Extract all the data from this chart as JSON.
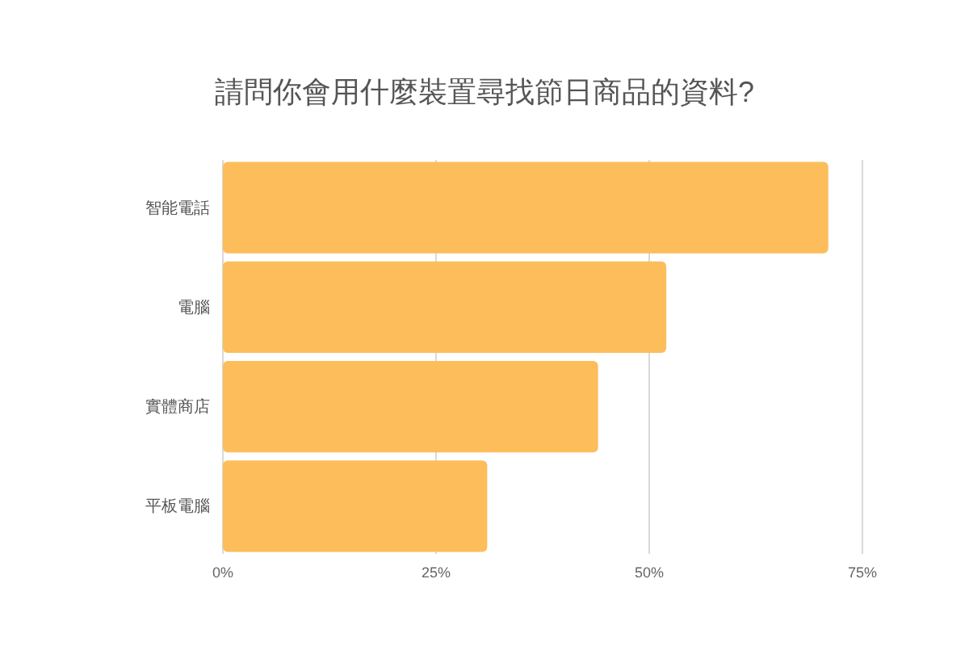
{
  "chart_data": {
    "type": "bar",
    "orientation": "horizontal",
    "title": "請問你會用什麼裝置尋找節日商品的資料?",
    "categories": [
      "智能電話",
      "電腦",
      "實體商店",
      "平板電腦"
    ],
    "values": [
      71,
      52,
      44,
      31
    ],
    "color": "#fdbd5a",
    "xlim": [
      0,
      75
    ],
    "xticks": [
      {
        "value": 0,
        "label": "0%"
      },
      {
        "value": 25,
        "label": "25%"
      },
      {
        "value": 50,
        "label": "50%"
      },
      {
        "value": 75,
        "label": "75%"
      }
    ],
    "grid": "x"
  }
}
